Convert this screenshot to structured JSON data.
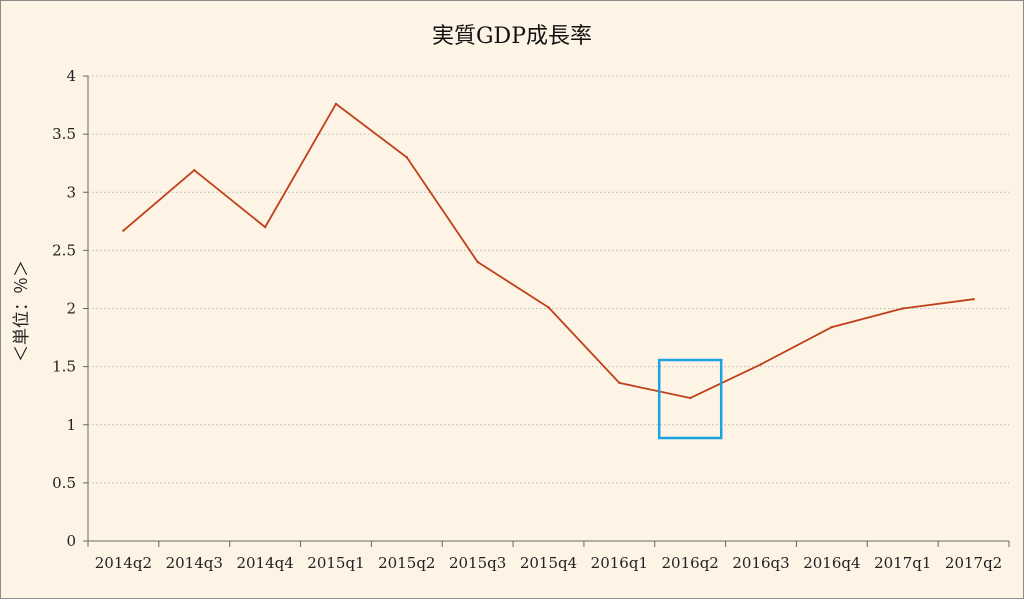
{
  "chart_data": {
    "type": "line",
    "title": "実質GDP成長率",
    "ylabel": "＜単位：％＞",
    "xlabel": "",
    "categories": [
      "2014q2",
      "2014q3",
      "2014q4",
      "2015q1",
      "2015q2",
      "2015q3",
      "2015q4",
      "2016q1",
      "2016q2",
      "2016q3",
      "2016q4",
      "2017q1",
      "2017q2"
    ],
    "series": [
      {
        "values": [
          2.67,
          3.19,
          2.7,
          3.76,
          3.3,
          2.4,
          2.01,
          1.36,
          1.23,
          1.52,
          1.84,
          2.0,
          2.08
        ]
      }
    ],
    "ylim": [
      0,
      4
    ],
    "yticks": [
      "0",
      "0.5",
      "1",
      "1.5",
      "2",
      "2.5",
      "3",
      "3.5",
      "4"
    ],
    "grid": "horizontal dotted",
    "legend": "none",
    "highlight": {
      "category": "2016q2",
      "shape": "rectangle"
    },
    "colors": {
      "line": "#c0401a",
      "highlight": "#1aa3e0",
      "background": "#fdf4e6",
      "grid": "#b8b8b8"
    }
  }
}
